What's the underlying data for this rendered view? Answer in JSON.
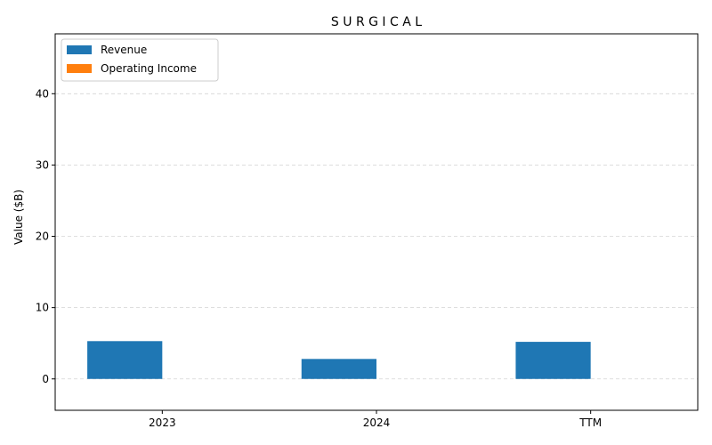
{
  "chart_data": {
    "type": "bar",
    "title": "S U R G I C A L",
    "xlabel": "",
    "ylabel": "Value ($B)",
    "categories": [
      "2023",
      "2024",
      "TTM"
    ],
    "series": [
      {
        "name": "Revenue",
        "color": "#1f77b4",
        "values": [
          5.3,
          2.8,
          5.2
        ]
      },
      {
        "name": "Operating Income",
        "color": "#ff7f0e",
        "values": [
          0,
          0,
          0
        ]
      }
    ],
    "ylim": [
      -4.4,
      48.4
    ],
    "yticks": [
      0,
      10,
      20,
      30,
      40
    ],
    "grid": "y-dashed",
    "legend_position": "top-left"
  }
}
